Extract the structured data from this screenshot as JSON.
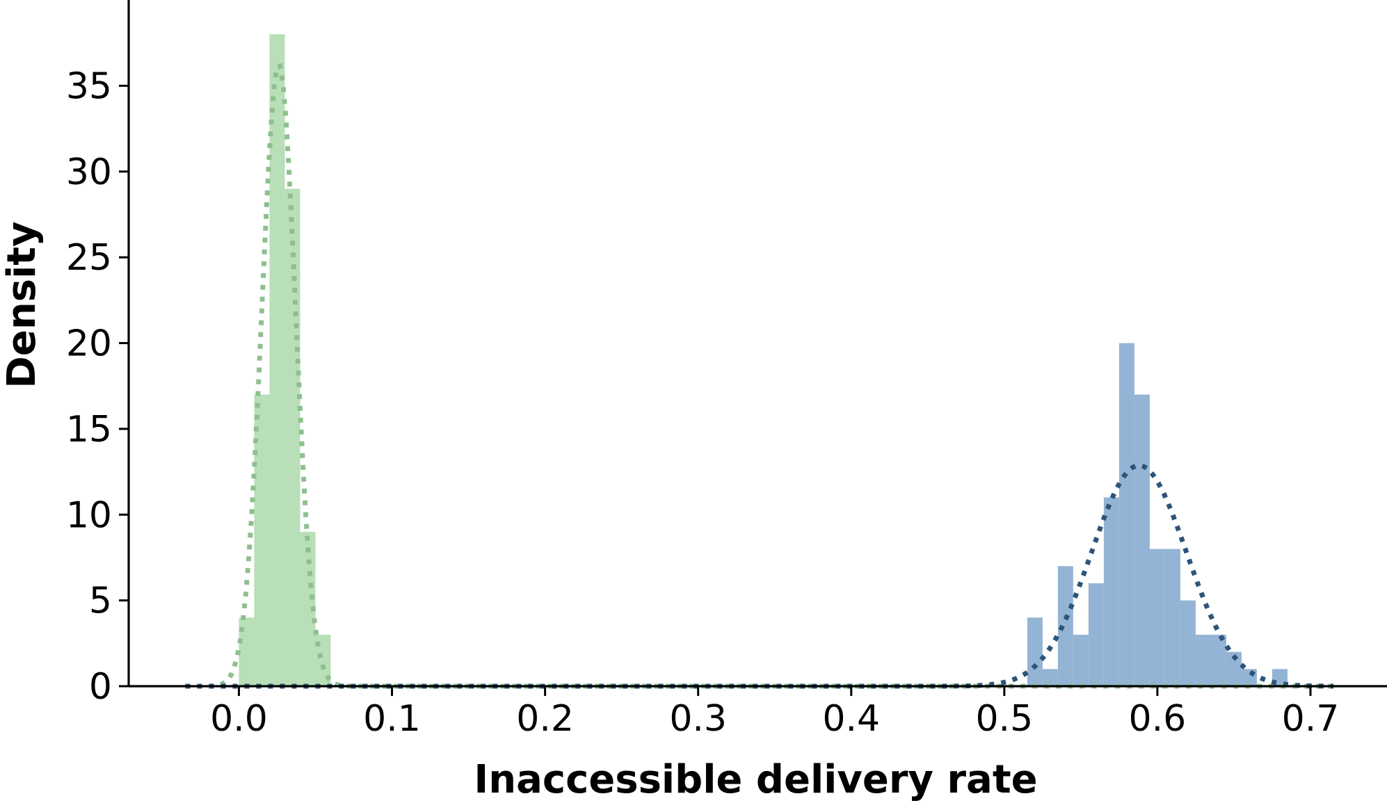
{
  "chart_data": {
    "type": "bar",
    "title": "",
    "xlabel": "Inaccessible delivery rate",
    "ylabel": "Density",
    "xlim": [
      -0.072,
      0.75
    ],
    "ylim": [
      0,
      40
    ],
    "xticks": [
      "0.0",
      "0.1",
      "0.2",
      "0.3",
      "0.4",
      "0.5",
      "0.6",
      "0.7"
    ],
    "yticks": [
      "0",
      "5",
      "10",
      "15",
      "20",
      "25",
      "30",
      "35"
    ],
    "grid": false,
    "series": [
      {
        "kind": "histogram",
        "color": "#b8dfb8",
        "bin_width": 0.01,
        "bins": [
          {
            "x0": 0.0,
            "density": 4
          },
          {
            "x0": 0.01,
            "density": 17
          },
          {
            "x0": 0.02,
            "density": 38
          },
          {
            "x0": 0.03,
            "density": 29
          },
          {
            "x0": 0.04,
            "density": 9
          },
          {
            "x0": 0.05,
            "density": 3
          }
        ],
        "density_curve": {
          "color": "#8fbf8f",
          "mean": 0.026,
          "sd": 0.011,
          "range": [
            -0.035,
            0.715
          ]
        }
      },
      {
        "kind": "histogram",
        "color": "#93b4d4",
        "bin_width": 0.01,
        "bins": [
          {
            "x0": 0.515,
            "density": 4
          },
          {
            "x0": 0.525,
            "density": 1
          },
          {
            "x0": 0.535,
            "density": 7
          },
          {
            "x0": 0.545,
            "density": 3
          },
          {
            "x0": 0.555,
            "density": 6
          },
          {
            "x0": 0.565,
            "density": 11
          },
          {
            "x0": 0.575,
            "density": 20
          },
          {
            "x0": 0.585,
            "density": 17
          },
          {
            "x0": 0.595,
            "density": 8
          },
          {
            "x0": 0.605,
            "density": 8
          },
          {
            "x0": 0.615,
            "density": 5
          },
          {
            "x0": 0.625,
            "density": 3
          },
          {
            "x0": 0.635,
            "density": 3
          },
          {
            "x0": 0.645,
            "density": 2
          },
          {
            "x0": 0.655,
            "density": 1
          },
          {
            "x0": 0.665,
            "density": 0
          },
          {
            "x0": 0.675,
            "density": 1
          }
        ],
        "density_curve": {
          "color": "#2d5478",
          "mean": 0.588,
          "sd": 0.031,
          "range": [
            -0.035,
            0.715
          ]
        }
      }
    ]
  }
}
